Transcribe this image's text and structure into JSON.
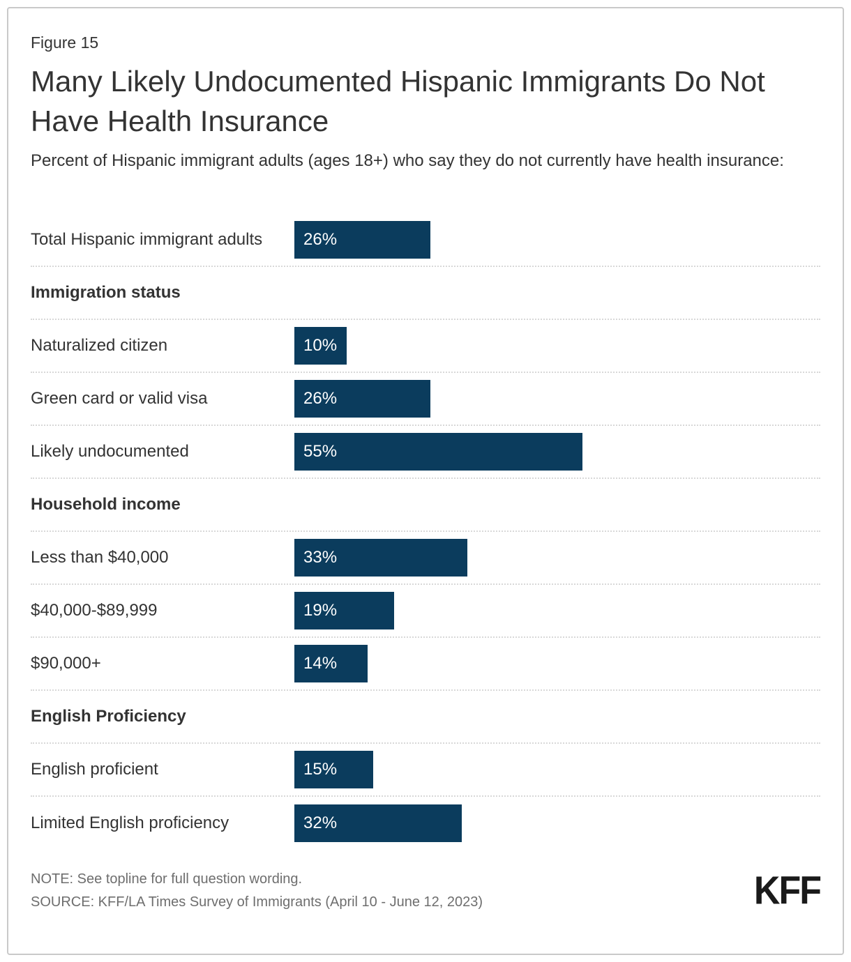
{
  "figure": {
    "label": "Figure 15",
    "title": "Many Likely Undocumented Hispanic Immigrants Do Not Have Health Insurance",
    "subtitle": "Percent of Hispanic immigrant adults (ages 18+) who say they do not currently have health insurance:"
  },
  "chart_data": {
    "type": "bar",
    "orientation": "horizontal",
    "value_unit": "%",
    "xlim": [
      0,
      100
    ],
    "bar_color": "#0B3C5D",
    "grid": false,
    "legend": false,
    "title": "Many Likely Undocumented Hispanic Immigrants Do Not Have Health Insurance",
    "subtitle": "Percent of Hispanic immigrant adults (ages 18+) who say they do not currently have health insurance:",
    "categories": [
      "Total Hispanic immigrant adults",
      "Naturalized citizen",
      "Green card or valid visa",
      "Likely undocumented",
      "Less than $40,000",
      "$40,000-$89,999",
      "$90,000+",
      "English proficient",
      "Limited English proficiency"
    ],
    "values": [
      26,
      10,
      26,
      55,
      33,
      19,
      14,
      15,
      32
    ],
    "sections": [
      "Immigration status",
      "Household income",
      "English Proficiency"
    ],
    "rows": [
      {
        "kind": "bar",
        "label": "Total Hispanic immigrant adults",
        "value": 26,
        "display": "26%"
      },
      {
        "kind": "section",
        "label": "Immigration status"
      },
      {
        "kind": "bar",
        "label": "Naturalized citizen",
        "value": 10,
        "display": "10%"
      },
      {
        "kind": "bar",
        "label": "Green card or valid visa",
        "value": 26,
        "display": "26%"
      },
      {
        "kind": "bar",
        "label": "Likely undocumented",
        "value": 55,
        "display": "55%"
      },
      {
        "kind": "section",
        "label": "Household income"
      },
      {
        "kind": "bar",
        "label": "Less than $40,000",
        "value": 33,
        "display": "33%"
      },
      {
        "kind": "bar",
        "label": "$40,000-$89,999",
        "value": 19,
        "display": "19%"
      },
      {
        "kind": "bar",
        "label": "$90,000+",
        "value": 14,
        "display": "14%"
      },
      {
        "kind": "section",
        "label": "English Proficiency"
      },
      {
        "kind": "bar",
        "label": "English proficient",
        "value": 15,
        "display": "15%"
      },
      {
        "kind": "bar",
        "label": "Limited English proficiency",
        "value": 32,
        "display": "32%"
      }
    ]
  },
  "footer": {
    "note": "NOTE: See topline for full question wording.",
    "source": "SOURCE: KFF/LA Times Survey of Immigrants (April 10 - June 12, 2023)",
    "logo": "KFF"
  }
}
